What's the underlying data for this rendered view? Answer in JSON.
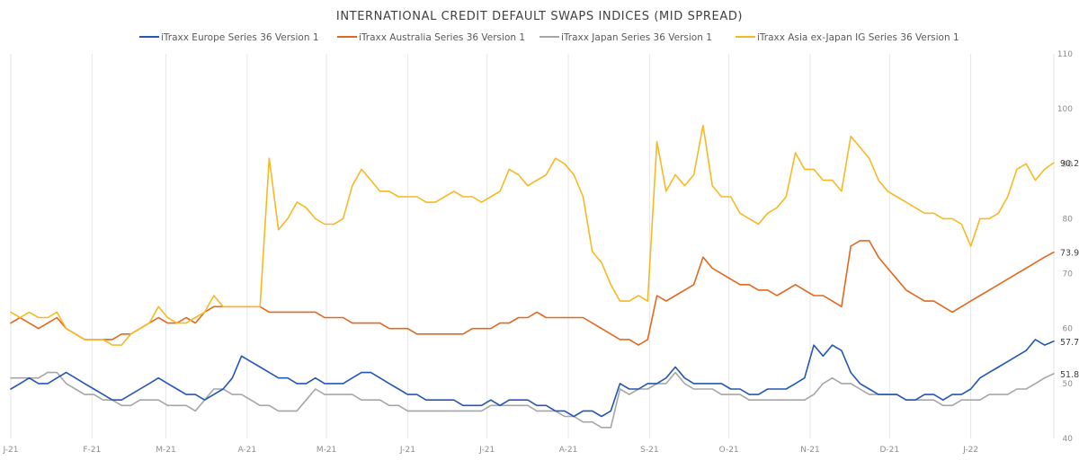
{
  "chart_data": {
    "type": "line",
    "title": "INTERNATIONAL CREDIT DEFAULT SWAPS INDICES (MID SPREAD)",
    "xlabel": "",
    "ylabel": "",
    "x_tick_labels": [
      "J-21",
      "F-21",
      "M-21",
      "A-21",
      "M-21",
      "J-21",
      "J-21",
      "A-21",
      "S-21",
      "O-21",
      "N-21",
      "D-21",
      "J-22"
    ],
    "y_ticks": [
      40,
      50,
      60,
      70,
      80,
      90,
      100,
      110
    ],
    "ylim": [
      40,
      110
    ],
    "x_domain_weeks": [
      0,
      56.5
    ],
    "y_axis_side": "right",
    "grid": {
      "vertical": true,
      "horizontal": false
    },
    "legend_position": "top",
    "series": [
      {
        "name": "iTraxx Europe Series 36 Version 1",
        "color": "#2456b5",
        "end_label": "57.7",
        "x": [
          0,
          0.5,
          1,
          1.5,
          2,
          2.5,
          3,
          3.5,
          4,
          4.5,
          5,
          5.5,
          6,
          6.5,
          7,
          7.5,
          8,
          8.5,
          9,
          9.5,
          10,
          10.5,
          11,
          11.5,
          12,
          12.5,
          13,
          13.5,
          14,
          14.5,
          15,
          15.5,
          16,
          16.5,
          17,
          17.5,
          18,
          18.5,
          19,
          19.5,
          20,
          20.5,
          21,
          21.5,
          22,
          22.5,
          23,
          23.5,
          24,
          24.5,
          25,
          25.5,
          26,
          26.5,
          27,
          27.5,
          28,
          28.5,
          29,
          29.5,
          30,
          30.5,
          31,
          31.5,
          32,
          32.5,
          33,
          33.5,
          34,
          34.5,
          35,
          35.5,
          36,
          36.5,
          37,
          37.5,
          38,
          38.5,
          39,
          39.5,
          40,
          40.5,
          41,
          41.5,
          42,
          42.5,
          43,
          43.5,
          44,
          44.5,
          45,
          45.5,
          46,
          46.5,
          47,
          47.5,
          48,
          48.5,
          49,
          49.5,
          50,
          50.5,
          51,
          51.5,
          52,
          52.5,
          53,
          53.5,
          54,
          54.5,
          55,
          55.5,
          56,
          56.5
        ],
        "values": [
          49,
          50,
          51,
          50,
          50,
          51,
          52,
          51,
          50,
          49,
          48,
          47,
          47,
          48,
          49,
          50,
          51,
          50,
          49,
          48,
          48,
          47,
          48,
          49,
          51,
          55,
          54,
          53,
          52,
          51,
          51,
          50,
          50,
          51,
          50,
          50,
          50,
          51,
          52,
          52,
          51,
          50,
          49,
          48,
          48,
          47,
          47,
          47,
          47,
          46,
          46,
          46,
          47,
          46,
          47,
          47,
          47,
          46,
          46,
          45,
          45,
          44,
          45,
          45,
          44,
          45,
          50,
          49,
          49,
          50,
          50,
          51,
          53,
          51,
          50,
          50,
          50,
          50,
          49,
          49,
          48,
          48,
          49,
          49,
          49,
          50,
          51,
          57,
          55,
          57,
          56,
          52,
          50,
          49,
          48,
          48,
          48,
          47,
          47,
          48,
          48,
          47,
          48,
          48,
          49,
          51,
          52,
          53,
          54,
          55,
          56,
          58,
          57,
          57.7
        ]
      },
      {
        "name": "iTraxx Australia Series 36 Version 1",
        "color": "#e1681e",
        "end_label": "73.9",
        "x": [
          0,
          0.5,
          1,
          1.5,
          2,
          2.5,
          3,
          3.5,
          4,
          4.5,
          5,
          5.5,
          6,
          6.5,
          7,
          7.5,
          8,
          8.5,
          9,
          9.5,
          10,
          10.5,
          11,
          11.5,
          12,
          12.5,
          13,
          13.5,
          14,
          14.5,
          15,
          15.5,
          16,
          16.5,
          17,
          17.5,
          18,
          18.5,
          19,
          19.5,
          20,
          20.5,
          21,
          21.5,
          22,
          22.5,
          23,
          23.5,
          24,
          24.5,
          25,
          25.5,
          26,
          26.5,
          27,
          27.5,
          28,
          28.5,
          29,
          29.5,
          30,
          30.5,
          31,
          31.5,
          32,
          32.5,
          33,
          33.5,
          34,
          34.5,
          35,
          35.5,
          36,
          36.5,
          37,
          37.5,
          38,
          38.5,
          39,
          39.5,
          40,
          40.5,
          41,
          41.5,
          42,
          42.5,
          43,
          43.5,
          44,
          44.5,
          45,
          45.5,
          46,
          46.5,
          47,
          47.5,
          48,
          48.5,
          49,
          49.5,
          50,
          50.5,
          51,
          51.5,
          52,
          52.5,
          53,
          53.5,
          54,
          54.5,
          55,
          55.5,
          56,
          56.5
        ],
        "values": [
          61,
          62,
          61,
          60,
          61,
          62,
          60,
          59,
          58,
          58,
          58,
          58,
          59,
          59,
          60,
          61,
          62,
          61,
          61,
          62,
          61,
          63,
          64,
          64,
          64,
          64,
          64,
          64,
          63,
          63,
          63,
          63,
          63,
          63,
          62,
          62,
          62,
          61,
          61,
          61,
          61,
          60,
          60,
          60,
          59,
          59,
          59,
          59,
          59,
          59,
          60,
          60,
          60,
          61,
          61,
          62,
          62,
          63,
          62,
          62,
          62,
          62,
          62,
          61,
          60,
          59,
          58,
          58,
          57,
          58,
          66,
          65,
          66,
          67,
          68,
          73,
          71,
          70,
          69,
          68,
          68,
          67,
          67,
          66,
          67,
          68,
          67,
          66,
          66,
          65,
          64,
          75,
          76,
          76,
          73,
          71,
          69,
          67,
          66,
          65,
          65,
          64,
          63,
          64,
          65,
          66,
          67,
          68,
          69,
          70,
          71,
          72,
          73,
          73.9
        ]
      },
      {
        "name": "iTraxx Japan Series 36 Version 1",
        "color": "#a6a6a6",
        "end_label": "51.8",
        "x": [
          0,
          0.5,
          1,
          1.5,
          2,
          2.5,
          3,
          3.5,
          4,
          4.5,
          5,
          5.5,
          6,
          6.5,
          7,
          7.5,
          8,
          8.5,
          9,
          9.5,
          10,
          10.5,
          11,
          11.5,
          12,
          12.5,
          13,
          13.5,
          14,
          14.5,
          15,
          15.5,
          16,
          16.5,
          17,
          17.5,
          18,
          18.5,
          19,
          19.5,
          20,
          20.5,
          21,
          21.5,
          22,
          22.5,
          23,
          23.5,
          24,
          24.5,
          25,
          25.5,
          26,
          26.5,
          27,
          27.5,
          28,
          28.5,
          29,
          29.5,
          30,
          30.5,
          31,
          31.5,
          32,
          32.5,
          33,
          33.5,
          34,
          34.5,
          35,
          35.5,
          36,
          36.5,
          37,
          37.5,
          38,
          38.5,
          39,
          39.5,
          40,
          40.5,
          41,
          41.5,
          42,
          42.5,
          43,
          43.5,
          44,
          44.5,
          45,
          45.5,
          46,
          46.5,
          47,
          47.5,
          48,
          48.5,
          49,
          49.5,
          50,
          50.5,
          51,
          51.5,
          52,
          52.5,
          53,
          53.5,
          54,
          54.5,
          55,
          55.5,
          56,
          56.5
        ],
        "values": [
          51,
          51,
          51,
          51,
          52,
          52,
          50,
          49,
          48,
          48,
          47,
          47,
          46,
          46,
          47,
          47,
          47,
          46,
          46,
          46,
          45,
          47,
          49,
          49,
          48,
          48,
          47,
          46,
          46,
          45,
          45,
          45,
          47,
          49,
          48,
          48,
          48,
          48,
          47,
          47,
          47,
          46,
          46,
          45,
          45,
          45,
          45,
          45,
          45,
          45,
          45,
          45,
          46,
          46,
          46,
          46,
          46,
          45,
          45,
          45,
          44,
          44,
          43,
          43,
          42,
          42,
          49,
          48,
          49,
          49,
          50,
          50,
          52,
          50,
          49,
          49,
          49,
          48,
          48,
          48,
          47,
          47,
          47,
          47,
          47,
          47,
          47,
          48,
          50,
          51,
          50,
          50,
          49,
          48,
          48,
          48,
          48,
          47,
          47,
          47,
          47,
          46,
          46,
          47,
          47,
          47,
          48,
          48,
          48,
          49,
          49,
          50,
          51,
          51.8
        ]
      },
      {
        "name": "iTraxx Asia ex-Japan IG Series 36 Version 1",
        "color": "#f7b923",
        "end_label": "90.2",
        "x": [
          0,
          0.5,
          1,
          1.5,
          2,
          2.5,
          3,
          3.5,
          4,
          4.5,
          5,
          5.5,
          6,
          6.5,
          7,
          7.5,
          8,
          8.5,
          9,
          9.5,
          10,
          10.5,
          11,
          11.5,
          12,
          12.5,
          13,
          13.5,
          14,
          14.5,
          15,
          15.5,
          16,
          16.5,
          17,
          17.5,
          18,
          18.5,
          19,
          19.5,
          20,
          20.5,
          21,
          21.5,
          22,
          22.5,
          23,
          23.5,
          24,
          24.5,
          25,
          25.5,
          26,
          26.5,
          27,
          27.5,
          28,
          28.5,
          29,
          29.5,
          30,
          30.5,
          31,
          31.5,
          32,
          32.5,
          33,
          33.5,
          34,
          34.5,
          35,
          35.5,
          36,
          36.5,
          37,
          37.5,
          38,
          38.5,
          39,
          39.5,
          40,
          40.5,
          41,
          41.5,
          42,
          42.5,
          43,
          43.5,
          44,
          44.5,
          45,
          45.5,
          46,
          46.5,
          47,
          47.5,
          48,
          48.5,
          49,
          49.5,
          50,
          50.5,
          51,
          51.5,
          52,
          52.5,
          53,
          53.5,
          54,
          54.5,
          55,
          55.5,
          56,
          56.5
        ],
        "values": [
          63,
          62,
          63,
          62,
          62,
          63,
          60,
          59,
          58,
          58,
          58,
          57,
          57,
          59,
          60,
          61,
          64,
          62,
          61,
          61,
          62,
          63,
          66,
          64,
          64,
          64,
          64,
          64,
          91,
          78,
          80,
          83,
          82,
          80,
          79,
          79,
          80,
          86,
          89,
          87,
          85,
          85,
          84,
          84,
          84,
          83,
          83,
          84,
          85,
          84,
          84,
          83,
          84,
          85,
          89,
          88,
          86,
          87,
          88,
          91,
          90,
          88,
          84,
          74,
          72,
          68,
          65,
          65,
          66,
          65,
          94,
          85,
          88,
          86,
          88,
          97,
          86,
          84,
          84,
          81,
          80,
          79,
          81,
          82,
          84,
          92,
          89,
          89,
          87,
          87,
          85,
          95,
          93,
          91,
          87,
          85,
          84,
          83,
          82,
          81,
          81,
          80,
          80,
          79,
          75,
          80,
          80,
          81,
          84,
          89,
          90,
          87,
          89,
          90.2
        ]
      }
    ]
  }
}
